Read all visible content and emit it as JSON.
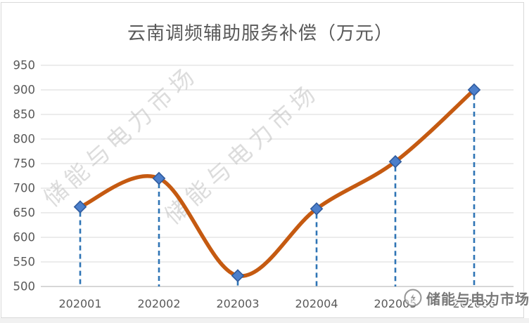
{
  "chart_data": {
    "type": "line",
    "title": "云南调频辅助服务补偿（万元）",
    "categories": [
      "202001",
      "202002",
      "202003",
      "202004",
      "202005",
      "202006"
    ],
    "series": [
      {
        "name": "调频辅助服务补偿",
        "values": [
          662,
          720,
          522,
          658,
          754,
          900
        ]
      }
    ],
    "ylim": [
      500,
      950
    ],
    "ytick_step": 50,
    "yticks": [
      500,
      550,
      600,
      650,
      700,
      750,
      800,
      850,
      900,
      950
    ],
    "xlabel": "",
    "ylabel": "",
    "grid": true,
    "legend": false,
    "smooth_line": true,
    "marker_shape": "diamond",
    "drop_lines": "dashed vertical from each point to x-axis"
  },
  "watermark": {
    "diagonal_text": "储能与电力市场",
    "logo_text": "储能与电力市场"
  },
  "style": {
    "line_color": "#C55A11",
    "marker_fill": "#4C7FCB",
    "marker_stroke": "#2F5B9E",
    "drop_line_color": "#2E74B5",
    "gridline_color": "#D9D9D9",
    "axis_line_color": "#BFBFBF",
    "text_color": "#595959",
    "watermark_color": "#BBBBBB",
    "logo_color": "#6B6B6B"
  }
}
